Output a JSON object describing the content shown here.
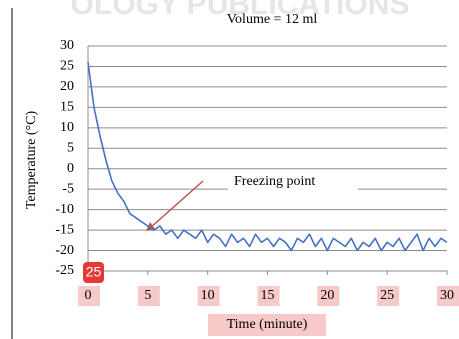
{
  "watermark": "OLOGY PUBLICATIONS",
  "badge": "25",
  "chart_data": {
    "type": "line",
    "title": "Volume = 12 ml",
    "xlabel": "Time (minute)",
    "ylabel": "Temperature (°C)",
    "annotation": "Freezing point",
    "x": [
      0,
      0.5,
      1,
      1.5,
      2,
      2.5,
      3,
      3.5,
      4,
      4.5,
      5,
      5.5,
      6,
      6.5,
      7,
      7.5,
      8,
      8.5,
      9,
      9.5,
      10,
      10.5,
      11,
      11.5,
      12,
      12.5,
      13,
      13.5,
      14,
      14.5,
      15,
      15.5,
      16,
      16.5,
      17,
      17.5,
      18,
      18.5,
      19,
      19.5,
      20,
      20.5,
      21,
      21.5,
      22,
      22.5,
      23,
      23.5,
      24,
      24.5,
      25,
      25.5,
      26,
      26.5,
      27,
      27.5,
      28,
      28.5,
      29,
      29.5,
      30
    ],
    "values": [
      26,
      15,
      8,
      2,
      -3,
      -6,
      -8,
      -11,
      -12,
      -13,
      -14,
      -15,
      -14,
      -16,
      -15,
      -17,
      -15,
      -16,
      -17,
      -15,
      -18,
      -16,
      -17,
      -19,
      -16,
      -18,
      -17,
      -19,
      -16,
      -18,
      -17,
      -19,
      -17,
      -18,
      -20,
      -17,
      -18,
      -16,
      -19,
      -17,
      -20,
      -17,
      -18,
      -19,
      -17,
      -20,
      -18,
      -19,
      -17,
      -20,
      -18,
      -19,
      -17,
      -20,
      -18,
      -16,
      -20,
      -17,
      -19,
      -17,
      -18
    ],
    "color": "#4472c4",
    "xlim": [
      0,
      30
    ],
    "xticks": [
      0,
      5,
      10,
      15,
      20,
      25,
      30
    ],
    "ylim": [
      -25,
      30
    ],
    "yticks": [
      30,
      25,
      20,
      15,
      10,
      5,
      0,
      -5,
      -10,
      -15,
      -20,
      -25
    ],
    "grid": true
  }
}
